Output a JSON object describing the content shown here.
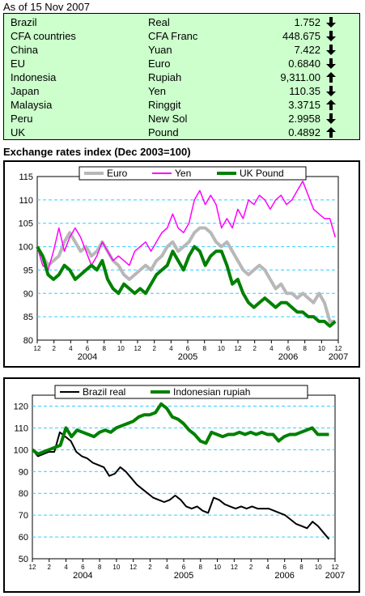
{
  "header": {
    "as_of": "As of 15 Nov 2007"
  },
  "rates": [
    {
      "country": "Brazil",
      "currency": "Real",
      "value": "1.752",
      "direction": "down"
    },
    {
      "country": "CFA countries",
      "currency": "CFA Franc",
      "value": "448.675",
      "direction": "down"
    },
    {
      "country": "China",
      "currency": "Yuan",
      "value": "7.422",
      "direction": "down"
    },
    {
      "country": "EU",
      "currency": "Euro",
      "value": "0.6840",
      "direction": "down"
    },
    {
      "country": "Indonesia",
      "currency": "Rupiah",
      "value": "9,311.00",
      "direction": "up"
    },
    {
      "country": "Japan",
      "currency": "Yen",
      "value": "110.35",
      "direction": "down"
    },
    {
      "country": "Malaysia",
      "currency": "Ringgit",
      "value": "3.3715",
      "direction": "up"
    },
    {
      "country": "Peru",
      "currency": "New Sol",
      "value": "2.9958",
      "direction": "down"
    },
    {
      "country": "UK",
      "currency": "Pound",
      "value": "0.4892",
      "direction": "up"
    }
  ],
  "colors": {
    "rates_background": "#ccffcc",
    "gridline": "#33ccff"
  },
  "section_title": "Exchange rates index (Dec 2003=100)",
  "chart_data": [
    {
      "type": "line",
      "ylim": [
        80,
        115
      ],
      "yticks": [
        80,
        85,
        90,
        95,
        100,
        105,
        110,
        115
      ],
      "xtick_labels": [
        "12",
        "2",
        "4",
        "6",
        "8",
        "10",
        "12",
        "2",
        "4",
        "6",
        "8",
        "10",
        "12",
        "2",
        "4",
        "6",
        "8",
        "10",
        "12"
      ],
      "year_labels": [
        "2004",
        "2005",
        "2006",
        "2007"
      ],
      "grid": "horizontal dashed",
      "legend_position": "top",
      "series": [
        {
          "name": "Euro",
          "color": "#b8b8b8",
          "width": 4,
          "values": [
            100,
            98,
            96,
            97,
            98,
            101,
            103,
            101,
            99,
            100,
            98,
            99,
            101,
            99,
            97,
            96,
            94,
            93,
            94,
            95,
            96,
            95,
            97,
            98,
            100,
            101,
            99,
            100,
            101,
            103,
            104,
            104,
            103,
            101,
            100,
            101,
            99,
            97,
            95,
            94,
            95,
            96,
            95,
            93,
            91,
            92,
            90,
            90,
            89,
            90,
            89,
            88,
            90,
            88,
            84,
            84
          ]
        },
        {
          "name": "Yen",
          "color": "#ff00ff",
          "width": 1.5,
          "values": [
            100,
            96,
            95,
            99,
            104,
            99,
            102,
            104,
            102,
            99,
            96,
            98,
            101,
            99,
            97,
            98,
            97,
            96,
            99,
            100,
            101,
            99,
            101,
            103,
            104,
            107,
            104,
            103,
            105,
            110,
            112,
            109,
            111,
            109,
            104,
            106,
            104,
            108,
            106,
            110,
            109,
            111,
            110,
            108,
            110,
            111,
            109,
            110,
            112,
            114,
            111,
            108,
            107,
            106,
            106,
            102
          ]
        },
        {
          "name": "UK Pound",
          "color": "#008000",
          "width": 4,
          "values": [
            100,
            98,
            94,
            93,
            94,
            96,
            95,
            93,
            94,
            95,
            96,
            95,
            97,
            93,
            91,
            90,
            92,
            91,
            90,
            91,
            90,
            92,
            94,
            95,
            96,
            99,
            97,
            95,
            98,
            100,
            99,
            96,
            98,
            99,
            99,
            96,
            92,
            93,
            90,
            88,
            87,
            88,
            89,
            88,
            87,
            88,
            88,
            87,
            86,
            86,
            85,
            85,
            84,
            84,
            83,
            84
          ]
        }
      ]
    },
    {
      "type": "line",
      "ylim": [
        50,
        125
      ],
      "yticks": [
        50,
        60,
        70,
        80,
        90,
        100,
        110,
        120
      ],
      "xtick_labels": [
        "12",
        "2",
        "4",
        "6",
        "8",
        "10",
        "12",
        "2",
        "4",
        "6",
        "8",
        "10",
        "12",
        "2",
        "4",
        "6",
        "8",
        "10",
        "12"
      ],
      "year_labels": [
        "2004",
        "2005",
        "2006",
        "2007"
      ],
      "grid": "horizontal dashed",
      "legend_position": "top",
      "series": [
        {
          "name": "Brazil real",
          "color": "#000000",
          "width": 2,
          "values": [
            100,
            97,
            98,
            99,
            99,
            108,
            106,
            104,
            99,
            97,
            96,
            94,
            93,
            92,
            88,
            89,
            92,
            90,
            87,
            84,
            82,
            80,
            78,
            77,
            76,
            77,
            79,
            77,
            74,
            73,
            74,
            72,
            71,
            78,
            77,
            75,
            74,
            73,
            74,
            73,
            74,
            73,
            73,
            73,
            72,
            71,
            70,
            68,
            66,
            65,
            64,
            67,
            65,
            62,
            59
          ]
        },
        {
          "name": "Indonesian rupiah",
          "color": "#008000",
          "width": 4,
          "values": [
            100,
            98,
            99,
            100,
            101,
            102,
            110,
            106,
            109,
            108,
            107,
            106,
            108,
            109,
            108,
            110,
            111,
            112,
            113,
            115,
            116,
            116,
            117,
            121,
            119,
            115,
            114,
            112,
            109,
            107,
            104,
            103,
            108,
            107,
            106,
            107,
            107,
            108,
            107,
            108,
            107,
            108,
            107,
            107,
            104,
            106,
            107,
            107,
            108,
            109,
            110,
            107,
            107,
            107
          ]
        }
      ]
    }
  ]
}
